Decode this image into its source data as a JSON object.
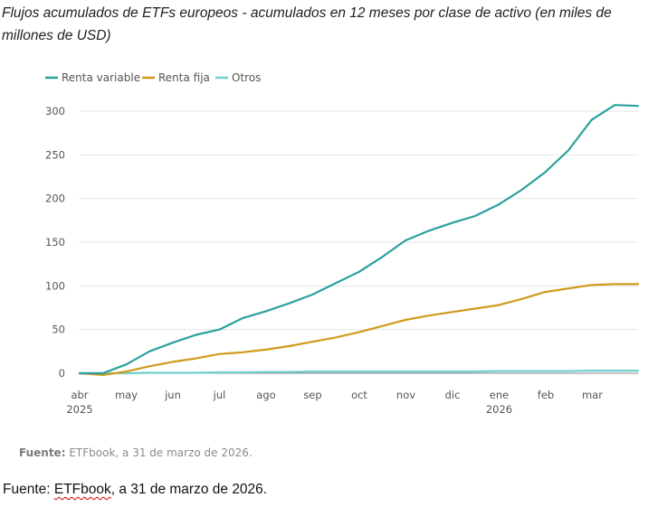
{
  "chart_data": {
    "type": "line",
    "title": "Flujos acumulados de ETFs europeos - acumulados en 12 meses por clase de activo (en miles de millones de USD)",
    "xlabel": "",
    "ylabel": "",
    "x_ticks": [
      "abr",
      "may",
      "jun",
      "jul",
      "ago",
      "sep",
      "oct",
      "nov",
      "dic",
      "ene",
      "feb",
      "mar"
    ],
    "x_tick_sublabels": {
      "abr": "2025",
      "ene": "2026"
    },
    "x": [
      0,
      0.5,
      1,
      1.5,
      2,
      2.5,
      3,
      3.5,
      4,
      4.5,
      5,
      5.5,
      6,
      6.5,
      7,
      7.5,
      8,
      8.5,
      9,
      9.5,
      10,
      10.5,
      11,
      11.5,
      12
    ],
    "x_range": [
      0,
      12
    ],
    "ylim": [
      -6,
      320
    ],
    "y_ticks": [
      0,
      50,
      100,
      150,
      200,
      250,
      300
    ],
    "grid": "horizontal",
    "legend_position": "top-left",
    "series": [
      {
        "name": "Renta variable",
        "color": "#2aa19b",
        "values": [
          0,
          0,
          10,
          25,
          35,
          44,
          50,
          63,
          71,
          80,
          90,
          103,
          116,
          133,
          152,
          163,
          172,
          180,
          193,
          210,
          230,
          255,
          290,
          307,
          306
        ]
      },
      {
        "name": "Renta fija",
        "color": "#d19a1b",
        "values": [
          0,
          -2,
          2,
          8,
          13,
          17,
          22,
          24,
          27,
          31,
          36,
          41,
          47,
          54,
          61,
          66,
          70,
          74,
          78,
          85,
          93,
          97,
          101,
          102,
          102
        ]
      },
      {
        "name": "Otros",
        "color": "#6fd0cc",
        "values": [
          0,
          0,
          0,
          0.5,
          0.5,
          0.5,
          1,
          1,
          1.5,
          1.5,
          2,
          2,
          2,
          2,
          2,
          2,
          2,
          2,
          2.5,
          2.5,
          2.5,
          2.5,
          3,
          3,
          3
        ]
      }
    ]
  },
  "source_inner": {
    "label": "Fuente:",
    "text": "ETFbook, a 31 de marzo de 2026."
  },
  "source_outer": {
    "prefix": "Fuente: ",
    "brand": "ETFbook",
    "suffix": ", a 31 de marzo de 2026."
  }
}
